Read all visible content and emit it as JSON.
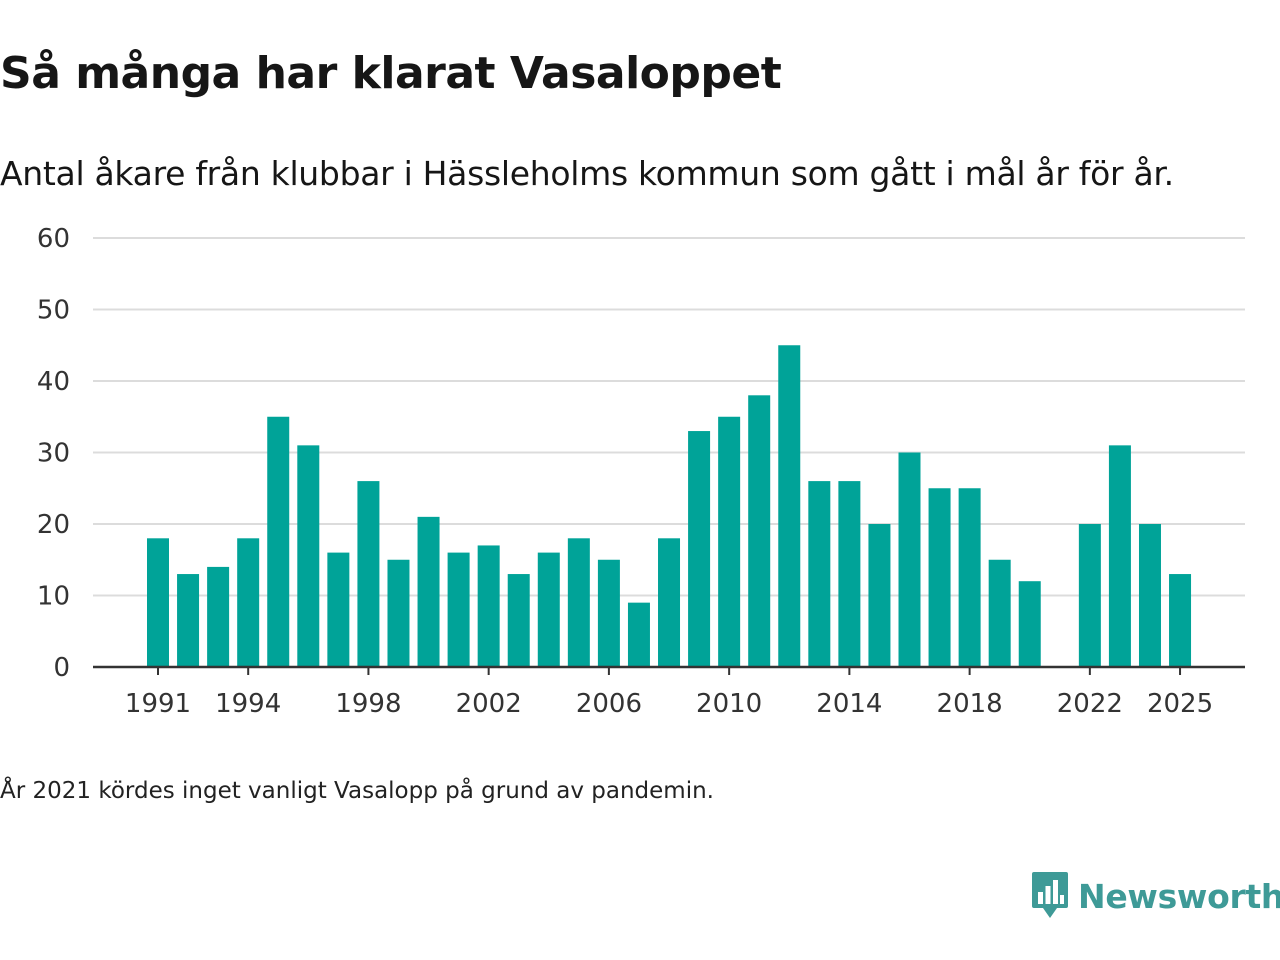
{
  "title": "Så många har klarat Vasaloppet",
  "subtitle": "Antal åkare från klubbar i Hässleholms kommun som gått i mål år för år.",
  "footnote": "År 2021 kördes inget vanligt Vasalopp på grund av pandemin.",
  "brand": {
    "name": "Newsworthy",
    "color": "#3e9a97"
  },
  "colors": {
    "bar": "#00a398",
    "grid": "#dcdcdc",
    "axis": "#333333",
    "text": "#333333"
  },
  "chart_data": {
    "type": "bar",
    "title": "Så många har klarat Vasaloppet",
    "subtitle": "Antal åkare från klubbar i Hässleholms kommun som gått i mål år för år.",
    "xlabel": "",
    "ylabel": "",
    "ylim": [
      0,
      60
    ],
    "yticks": [
      0,
      10,
      20,
      30,
      40,
      50,
      60
    ],
    "xtick_labels": [
      1991,
      1994,
      1998,
      2002,
      2006,
      2010,
      2014,
      2018,
      2022,
      2025
    ],
    "grid": true,
    "legend": "none",
    "categories": [
      1991,
      1992,
      1993,
      1994,
      1995,
      1996,
      1997,
      1998,
      1999,
      2000,
      2001,
      2002,
      2003,
      2004,
      2005,
      2006,
      2007,
      2008,
      2009,
      2010,
      2011,
      2012,
      2013,
      2014,
      2015,
      2016,
      2017,
      2018,
      2019,
      2020,
      2021,
      2022,
      2023,
      2024,
      2025
    ],
    "values": [
      18,
      13,
      14,
      18,
      35,
      31,
      16,
      26,
      15,
      21,
      16,
      17,
      13,
      16,
      18,
      15,
      9,
      18,
      33,
      35,
      38,
      45,
      26,
      26,
      20,
      30,
      25,
      25,
      15,
      12,
      null,
      20,
      31,
      20,
      13
    ]
  }
}
